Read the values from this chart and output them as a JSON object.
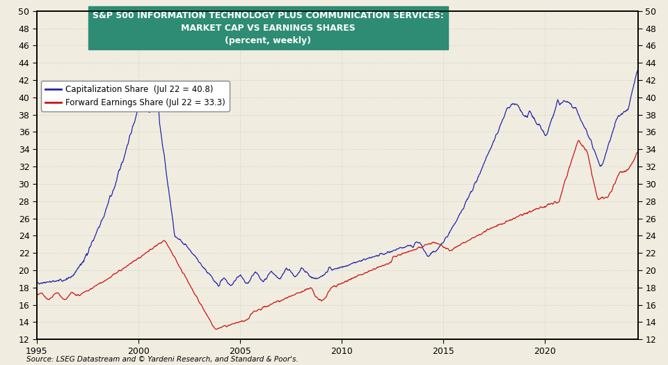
{
  "title_line1": "S&P 500 INFORMATION TECHNOLOGY PLUS COMMUNICATION SERVICES:",
  "title_line2": "MARKET CAP VS EARNINGS SHARES",
  "title_line3": "(percent, weekly)",
  "title_bg_color": "#2e8b74",
  "title_text_color": "white",
  "legend_line1": "Capitalization Share  (Jul 22 = 40.8)",
  "legend_line2": "Forward Earnings Share (Jul 22 = 33.3)",
  "blue_color": "#2222aa",
  "red_color": "#cc1111",
  "background_color": "#f0ede0",
  "grid_color": "#bbbbbb",
  "ylim": [
    12,
    50
  ],
  "yticks_left": [
    12,
    14,
    16,
    18,
    20,
    22,
    24,
    26,
    28,
    30,
    32,
    34,
    36,
    38,
    40,
    42,
    44,
    46,
    48,
    50
  ],
  "yticks_right": [
    12,
    14,
    16,
    18,
    20,
    22,
    24,
    26,
    28,
    30,
    32,
    34,
    36,
    38,
    40,
    42,
    44,
    46,
    48,
    50
  ],
  "xlim_start": 1995.0,
  "xlim_end": 2024.6,
  "xticks": [
    1995,
    2000,
    2005,
    2010,
    2015,
    2020
  ],
  "source_text": "Source: LSEG Datastream and © Yardeni Research, and Standard & Poor's."
}
